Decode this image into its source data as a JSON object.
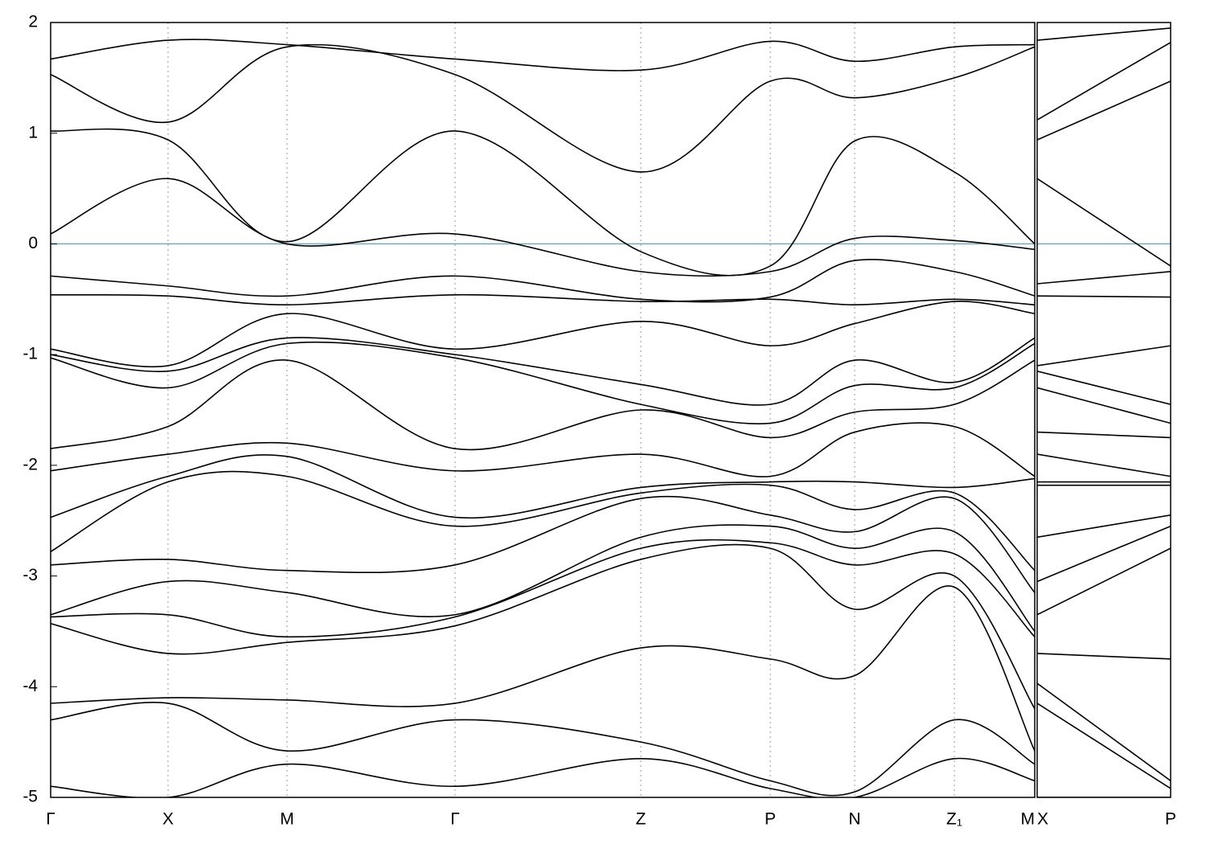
{
  "chart_data": [
    {
      "type": "line",
      "color": "#000000",
      "hline": {
        "value": 0,
        "color": "#5ab4c8"
      },
      "x": [
        0,
        146,
        294,
        503,
        734,
        895,
        1000,
        1124,
        1224
      ],
      "xlim": [
        0,
        1224
      ],
      "xticks": [
        {
          "value": 0,
          "label": "Γ"
        },
        {
          "value": 146,
          "label": "X"
        },
        {
          "value": 294,
          "label": "M"
        },
        {
          "value": 503,
          "label": "Γ"
        },
        {
          "value": 734,
          "label": "Z"
        },
        {
          "value": 895,
          "label": "P"
        },
        {
          "value": 1000,
          "label": "N"
        },
        {
          "value": 1124,
          "label": "Z₁"
        },
        {
          "value": 1224,
          "label": "M"
        }
      ],
      "ylim": [
        -5,
        2
      ],
      "yticks": [
        2,
        1,
        0,
        -1,
        -2,
        -3,
        -4,
        -5
      ],
      "series": [
        {
          "values": [
            1.67,
            1.84,
            1.8,
            1.67,
            1.57,
            1.83,
            1.65,
            1.78,
            1.8
          ]
        },
        {
          "values": [
            1.53,
            1.1,
            1.78,
            1.53,
            0.65,
            1.47,
            1.32,
            1.5,
            1.78
          ]
        },
        {
          "values": [
            1.02,
            0.94,
            0.02,
            1.02,
            -0.07,
            -0.2,
            0.93,
            0.65,
            0.0
          ]
        },
        {
          "values": [
            0.09,
            0.59,
            0.0,
            0.09,
            -0.25,
            -0.25,
            0.05,
            0.03,
            -0.05
          ]
        },
        {
          "values": [
            -0.29,
            -0.38,
            -0.47,
            -0.29,
            -0.5,
            -0.48,
            -0.15,
            -0.25,
            -0.47
          ]
        },
        {
          "values": [
            -0.46,
            -0.47,
            -0.55,
            -0.46,
            -0.52,
            -0.5,
            -0.55,
            -0.5,
            -0.55
          ]
        },
        {
          "values": [
            -0.95,
            -1.1,
            -0.63,
            -0.95,
            -0.7,
            -0.92,
            -0.72,
            -0.52,
            -0.63
          ]
        },
        {
          "values": [
            -1.0,
            -1.15,
            -0.85,
            -1.0,
            -1.27,
            -1.45,
            -1.05,
            -1.25,
            -0.85
          ]
        },
        {
          "values": [
            -1.03,
            -1.3,
            -0.9,
            -1.03,
            -1.45,
            -1.62,
            -1.28,
            -1.3,
            -0.9
          ]
        },
        {
          "values": [
            -1.85,
            -1.65,
            -1.05,
            -1.85,
            -1.5,
            -1.75,
            -1.52,
            -1.45,
            -1.05
          ]
        },
        {
          "values": [
            -2.05,
            -1.9,
            -1.8,
            -2.05,
            -1.9,
            -2.1,
            -1.7,
            -1.65,
            -2.1
          ]
        },
        {
          "values": [
            -2.47,
            -2.1,
            -1.92,
            -2.47,
            -2.2,
            -2.15,
            -2.15,
            -2.2,
            -2.12
          ]
        },
        {
          "values": [
            -2.78,
            -2.15,
            -2.1,
            -2.55,
            -2.25,
            -2.18,
            -2.4,
            -2.25,
            -2.95
          ]
        },
        {
          "values": [
            -2.9,
            -2.85,
            -2.95,
            -2.9,
            -2.3,
            -2.45,
            -2.6,
            -2.3,
            -3.15
          ]
        },
        {
          "values": [
            -3.35,
            -3.05,
            -3.15,
            -3.35,
            -2.65,
            -2.55,
            -2.75,
            -2.6,
            -3.5
          ]
        },
        {
          "values": [
            -3.37,
            -3.35,
            -3.55,
            -3.37,
            -2.75,
            -2.7,
            -2.9,
            -2.8,
            -3.55
          ]
        },
        {
          "values": [
            -3.43,
            -3.7,
            -3.6,
            -3.45,
            -2.85,
            -2.75,
            -3.3,
            -3.0,
            -4.2
          ]
        },
        {
          "values": [
            -4.15,
            -4.1,
            -4.12,
            -4.15,
            -3.65,
            -3.75,
            -3.9,
            -3.1,
            -4.58
          ]
        },
        {
          "values": [
            -4.3,
            -4.15,
            -4.58,
            -4.3,
            -4.5,
            -4.85,
            -4.95,
            -4.3,
            -4.7
          ]
        },
        {
          "values": [
            -4.9,
            -5.0,
            -4.7,
            -4.9,
            -4.65,
            -4.92,
            -5.0,
            -4.65,
            -4.85
          ]
        }
      ]
    },
    {
      "type": "line",
      "color": "#000000",
      "hline": {
        "value": 0,
        "color": "#5ab4c8"
      },
      "x": [
        0,
        166
      ],
      "xlim": [
        0,
        166
      ],
      "xticks": [
        {
          "value": 0,
          "label": "X"
        },
        {
          "value": 166,
          "label": "P"
        }
      ],
      "ylim": [
        -5,
        2
      ],
      "series": [
        {
          "values": [
            1.84,
            1.95
          ]
        },
        {
          "values": [
            1.12,
            1.82
          ]
        },
        {
          "values": [
            0.94,
            1.47
          ]
        },
        {
          "values": [
            0.59,
            -0.2
          ]
        },
        {
          "values": [
            -0.36,
            -0.25
          ]
        },
        {
          "values": [
            -0.47,
            -0.48
          ]
        },
        {
          "values": [
            -1.1,
            -0.92
          ]
        },
        {
          "values": [
            -1.15,
            -1.45
          ]
        },
        {
          "values": [
            -1.3,
            -1.62
          ]
        },
        {
          "values": [
            -1.7,
            -1.75
          ]
        },
        {
          "values": [
            -1.9,
            -2.1
          ]
        },
        {
          "values": [
            -2.15,
            -2.15
          ]
        },
        {
          "values": [
            -2.18,
            -2.18
          ]
        },
        {
          "values": [
            -2.65,
            -2.45
          ]
        },
        {
          "values": [
            -3.05,
            -2.55
          ]
        },
        {
          "values": [
            -3.35,
            -2.75
          ]
        },
        {
          "values": [
            -3.7,
            -3.75
          ]
        },
        {
          "values": [
            -3.97,
            -4.85
          ]
        },
        {
          "values": [
            -4.15,
            -4.92
          ]
        },
        {
          "values": [
            -5.0,
            -5.0
          ]
        }
      ]
    }
  ]
}
